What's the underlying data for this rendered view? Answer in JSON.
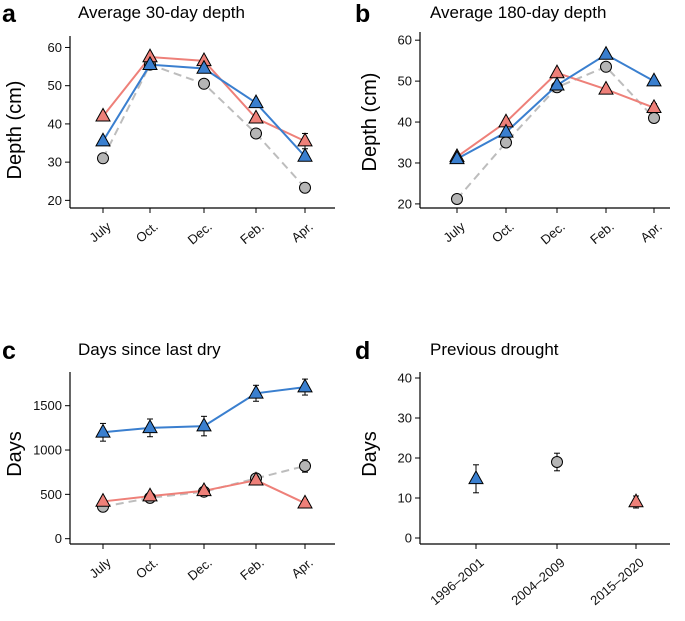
{
  "colors": {
    "series_blue": "#3a7fcf",
    "series_red": "#ee8079",
    "series_grey": "#b5b5b5",
    "grey_line": "#bdbdbd",
    "marker_edge": "#000000"
  },
  "chart_data": [
    {
      "panel": "a",
      "type": "line",
      "title": "Average 30-day depth",
      "ylabel": "Depth (cm)",
      "xlabel": "",
      "categories": [
        "July",
        "Oct.",
        "Dec.",
        "Feb.",
        "Apr."
      ],
      "ylim": [
        18,
        63
      ],
      "yticks": [
        20,
        30,
        40,
        50,
        60
      ],
      "series": [
        {
          "name": "grey",
          "marker": "circle",
          "line": "dashed",
          "values": [
            31,
            55.5,
            50.5,
            37.5,
            23.3
          ],
          "errors": [
            0,
            0,
            0,
            0,
            0
          ]
        },
        {
          "name": "red",
          "marker": "triangle",
          "line": "solid",
          "values": [
            42,
            57.5,
            56.5,
            41.5,
            35.5
          ],
          "errors": [
            0,
            0,
            0,
            0,
            2
          ]
        },
        {
          "name": "blue",
          "marker": "triangle",
          "line": "solid",
          "values": [
            35.5,
            55.5,
            54.5,
            45.5,
            31.5
          ],
          "errors": [
            0,
            0,
            0,
            0,
            0
          ]
        }
      ]
    },
    {
      "panel": "b",
      "type": "line",
      "title": "Average 180-day depth",
      "ylabel": "Depth (cm)",
      "xlabel": "",
      "categories": [
        "July",
        "Oct.",
        "Dec.",
        "Feb.",
        "Apr."
      ],
      "ylim": [
        19,
        62
      ],
      "yticks": [
        20,
        30,
        40,
        50,
        60
      ],
      "series": [
        {
          "name": "grey",
          "marker": "circle",
          "line": "dashed",
          "values": [
            21.2,
            35,
            48.5,
            53.5,
            41
          ],
          "errors": [
            0,
            0,
            0,
            0,
            0
          ]
        },
        {
          "name": "red",
          "marker": "triangle",
          "line": "solid",
          "values": [
            31.5,
            40,
            52,
            48,
            43.5
          ],
          "errors": [
            0,
            0,
            0,
            0,
            1
          ]
        },
        {
          "name": "blue",
          "marker": "triangle",
          "line": "solid",
          "values": [
            31,
            37.5,
            49,
            56.5,
            50
          ],
          "errors": [
            0,
            0,
            0,
            0,
            0
          ]
        }
      ]
    },
    {
      "panel": "c",
      "type": "line",
      "title": "Days since last dry",
      "ylabel": "Days",
      "xlabel": "",
      "categories": [
        "July",
        "Oct.",
        "Dec.",
        "Feb.",
        "Apr."
      ],
      "ylim": [
        -60,
        1880
      ],
      "yticks": [
        0,
        500,
        1000,
        1500
      ],
      "series": [
        {
          "name": "grey",
          "marker": "circle",
          "line": "dashed",
          "values": [
            360,
            460,
            530,
            680,
            820
          ],
          "errors": [
            30,
            30,
            40,
            50,
            70
          ]
        },
        {
          "name": "red",
          "marker": "triangle",
          "line": "solid",
          "values": [
            420,
            480,
            540,
            660,
            400
          ],
          "errors": [
            30,
            30,
            40,
            40,
            40
          ]
        },
        {
          "name": "blue",
          "marker": "triangle",
          "line": "solid",
          "values": [
            1200,
            1250,
            1270,
            1640,
            1710
          ],
          "errors": [
            100,
            100,
            110,
            90,
            90
          ]
        }
      ]
    },
    {
      "panel": "d",
      "type": "scatter",
      "title": "Previous drought",
      "ylabel": "Days",
      "xlabel": "",
      "categories": [
        "1996–2001",
        "2004–2009",
        "2015–2020"
      ],
      "ylim": [
        -1.5,
        41.5
      ],
      "yticks": [
        0,
        10,
        20,
        30,
        40
      ],
      "series": [
        {
          "name": "blue",
          "marker": "triangle",
          "category_index": 0,
          "value": 14.8,
          "error": 3.5
        },
        {
          "name": "grey",
          "marker": "circle",
          "category_index": 1,
          "value": 19,
          "error": 2.2
        },
        {
          "name": "red",
          "marker": "triangle",
          "category_index": 2,
          "value": 9,
          "error": 1.5
        }
      ]
    }
  ]
}
